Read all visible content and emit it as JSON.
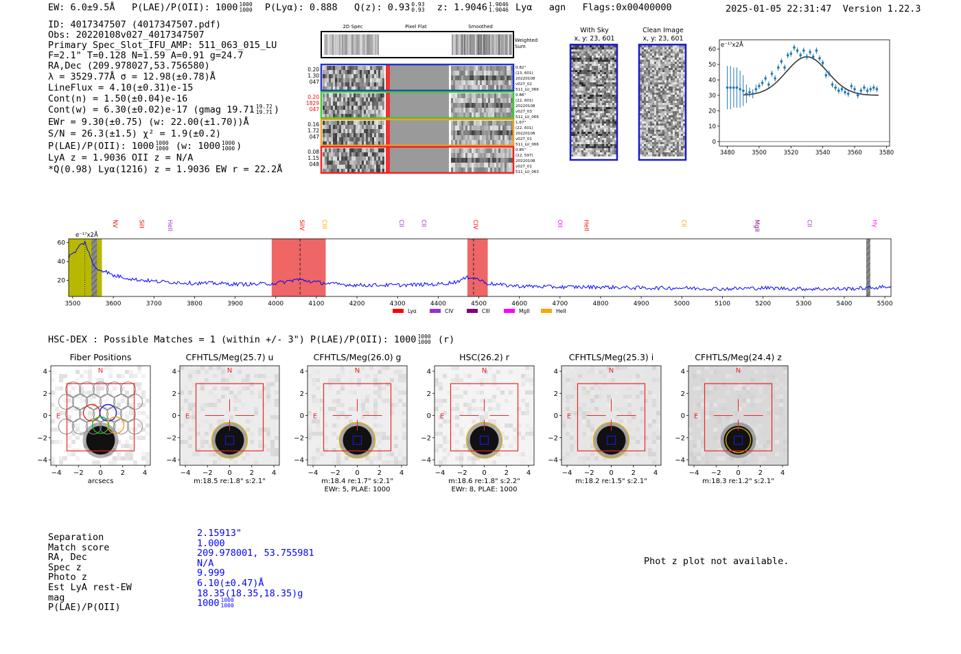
{
  "header": {
    "ew": "EW: 6.0±9.5Å",
    "plae_label": "P(LAE)/P(OII): 1000",
    "plae_sup": "1000",
    "plae_sub": "1000",
    "plya": "P(Lyα): 0.888",
    "qz_label": "Q(z): 0.93",
    "qz_sup": "0.93",
    "qz_sub": "0.93",
    "z_label": "z: 1.9046",
    "z_sup": "1.9046",
    "z_sub": "1.9046",
    "z_line": "Lyα",
    "agn": "agn",
    "flags": "Flags:0x00400000",
    "timestamp": "2025-01-05 22:31:47",
    "version": "Version 1.22.3"
  },
  "info": {
    "id": "ID: 4017347507 (4017347507.pdf)",
    "obs": "Obs: 20220108v027_4017347507",
    "primary": "Primary Spec_Slot_IFU_AMP: 511_063_015_LU",
    "fiber": "F=2.1\"  T=0.128  N=1.59  A=0.91  g=24.7",
    "radec": "RA,Dec (209.978027,53.756580)",
    "lambda": "λ = 3529.77Å  σ = 12.98(±0.78)Å",
    "lineflux": "LineFlux = 4.10(±0.31)e-15",
    "contn": "Cont(n) = 1.50(±0.04)e-16",
    "contw": "Cont(w) = 6.30(±0.02)e-17 (gmag 19.71",
    "contw_sup": "19.72",
    "contw_sub": "19.71",
    "contw_end": ")",
    "ewr": "EWr = 9.30(±0.75) (w: 22.00(±1.70))Å",
    "sn": "S/N = 26.3(±1.5)  χ² = 1.9(±0.2)",
    "plae": "P(LAE)/P(OII): 1000",
    "plae_sup": "1000",
    "plae_sub": "1000",
    "plae_w": "(w: 1000",
    "plae_w_sup": "1000",
    "plae_w_sub": "1000",
    "plae_w_end": ")",
    "lya_z": "LyA z = 1.9036  OII z = N/A",
    "q_line": "*Q(0.98) Lyα(1216) z = 1.9036  EW r = 22.2Å"
  },
  "spec2d": {
    "col_headers": [
      "2D Spec",
      "Pixel Flat",
      "Smoothed"
    ],
    "weighted_sum": [
      "Weighted",
      "Sum"
    ],
    "rows": [
      {
        "left": [
          "0.20",
          "1.30",
          "047"
        ],
        "left_color": "#000000",
        "right": [
          "0.82\"",
          "(23, 601)",
          "20220108",
          "v027_02",
          "511_LU_066"
        ],
        "border": "#2233cc"
      },
      {
        "left": [
          "0.20",
          "1829",
          "047"
        ],
        "left_color": "#ff0000",
        "right": [
          "0.86\"",
          "(22, 601)",
          "20220108",
          "v027_03",
          "511_LU_066"
        ],
        "border": "#33cc33"
      },
      {
        "left": [
          "0.16",
          "1.72",
          "047"
        ],
        "left_color": "#000000",
        "right": [
          "1.67\"",
          "(22, 601)",
          "20220108",
          "v027_01",
          "511_LU_066"
        ],
        "border": "#f0a020"
      },
      {
        "left": [
          "0.08",
          "1.15",
          "048"
        ],
        "left_color": "#000000",
        "right": [
          "0.85\"",
          "(22, 597)",
          "20220108",
          "v027_01",
          "511_LU_063"
        ],
        "border": "#ee2222"
      }
    ]
  },
  "cutouts_top": [
    {
      "title": "With Sky",
      "sub": "x, y: 23, 601"
    },
    {
      "title": "Clean Image",
      "sub": "x, y: 23, 601"
    }
  ],
  "colors": {
    "fit_points": "#1f77b4",
    "model": "#333333",
    "spectrum": "#0000ff",
    "bar_red": "#ee6666",
    "bar_yellow": "#b8b800",
    "bar_gray": "#888888",
    "match_blue": "#0000ff"
  },
  "chart_data": [
    {
      "type": "scatter",
      "name": "line-fit",
      "unit_label": "e⁻¹⁷x2Å",
      "xlim": [
        3475,
        3582
      ],
      "ylim": [
        -3,
        66
      ],
      "xticks": [
        3480,
        3500,
        3520,
        3540,
        3560,
        3580
      ],
      "yticks": [
        0,
        10,
        20,
        30,
        40,
        50,
        60
      ],
      "hline": 0,
      "points": [
        {
          "x": 3480,
          "y": 35,
          "err": 14
        },
        {
          "x": 3482,
          "y": 35,
          "err": 14
        },
        {
          "x": 3484,
          "y": 35,
          "err": 13
        },
        {
          "x": 3486,
          "y": 35,
          "err": 13
        },
        {
          "x": 3488,
          "y": 34,
          "err": 12
        },
        {
          "x": 3490,
          "y": 33,
          "err": 10
        },
        {
          "x": 3492,
          "y": 31,
          "err": 6
        },
        {
          "x": 3494,
          "y": 32,
          "err": 3
        },
        {
          "x": 3496,
          "y": 31,
          "err": 3
        },
        {
          "x": 3498,
          "y": 34,
          "err": 3
        },
        {
          "x": 3500,
          "y": 36,
          "err": 2
        },
        {
          "x": 3502,
          "y": 38,
          "err": 2
        },
        {
          "x": 3504,
          "y": 41,
          "err": 2
        },
        {
          "x": 3506,
          "y": 37,
          "err": 2
        },
        {
          "x": 3508,
          "y": 44,
          "err": 2
        },
        {
          "x": 3510,
          "y": 41,
          "err": 2
        },
        {
          "x": 3512,
          "y": 48,
          "err": 2
        },
        {
          "x": 3514,
          "y": 52,
          "err": 2
        },
        {
          "x": 3516,
          "y": 48,
          "err": 2
        },
        {
          "x": 3518,
          "y": 56,
          "err": 2
        },
        {
          "x": 3520,
          "y": 57,
          "err": 2
        },
        {
          "x": 3522,
          "y": 61,
          "err": 2
        },
        {
          "x": 3524,
          "y": 59,
          "err": 2
        },
        {
          "x": 3526,
          "y": 56,
          "err": 2
        },
        {
          "x": 3528,
          "y": 59,
          "err": 2
        },
        {
          "x": 3530,
          "y": 55,
          "err": 2
        },
        {
          "x": 3532,
          "y": 58,
          "err": 2
        },
        {
          "x": 3534,
          "y": 55,
          "err": 2
        },
        {
          "x": 3536,
          "y": 59,
          "err": 2
        },
        {
          "x": 3538,
          "y": 54,
          "err": 2
        },
        {
          "x": 3540,
          "y": 51,
          "err": 2
        },
        {
          "x": 3542,
          "y": 43,
          "err": 2
        },
        {
          "x": 3544,
          "y": 44,
          "err": 2
        },
        {
          "x": 3546,
          "y": 37,
          "err": 2
        },
        {
          "x": 3548,
          "y": 35,
          "err": 2
        },
        {
          "x": 3550,
          "y": 33,
          "err": 2
        },
        {
          "x": 3552,
          "y": 34,
          "err": 2
        },
        {
          "x": 3554,
          "y": 32,
          "err": 2
        },
        {
          "x": 3556,
          "y": 31,
          "err": 2
        },
        {
          "x": 3558,
          "y": 36,
          "err": 2
        },
        {
          "x": 3560,
          "y": 34,
          "err": 2
        },
        {
          "x": 3562,
          "y": 30,
          "err": 2
        },
        {
          "x": 3564,
          "y": 33,
          "err": 2
        },
        {
          "x": 3566,
          "y": 35,
          "err": 2
        },
        {
          "x": 3568,
          "y": 33,
          "err": 2
        },
        {
          "x": 3570,
          "y": 34,
          "err": 2
        },
        {
          "x": 3572,
          "y": 35,
          "err": 2
        },
        {
          "x": 3574,
          "y": 34,
          "err": 2
        }
      ],
      "model": {
        "center": 3530,
        "sigma": 13,
        "amplitude": 25,
        "baseline": 30,
        "xrange": [
          3490,
          3575
        ]
      }
    },
    {
      "type": "line",
      "name": "full-spectrum",
      "unit_label": "e⁻¹⁷x2Å",
      "xlim": [
        3490,
        5515
      ],
      "ylim": [
        3,
        64
      ],
      "xticks": [
        3500,
        3600,
        3700,
        3800,
        3900,
        4000,
        4100,
        4200,
        4300,
        4400,
        4500,
        4600,
        4700,
        4800,
        4900,
        5000,
        5100,
        5200,
        5300,
        5400,
        5500
      ],
      "yticks": [
        20,
        40,
        60
      ],
      "x": [
        3490,
        3500,
        3510,
        3520,
        3530,
        3540,
        3550,
        3560,
        3580,
        3600,
        3620,
        3650,
        3680,
        3700,
        3750,
        3800,
        3850,
        3900,
        3950,
        4000,
        4030,
        4050,
        4070,
        4100,
        4150,
        4200,
        4300,
        4400,
        4440,
        4460,
        4480,
        4500,
        4520,
        4560,
        4600,
        4700,
        4800,
        4900,
        5000,
        5100,
        5200,
        5300,
        5400,
        5460,
        5500,
        5515
      ],
      "y": [
        45,
        48,
        52,
        58,
        60,
        50,
        36,
        32,
        30,
        25,
        24,
        21,
        20,
        19,
        18,
        17,
        17,
        16,
        16,
        17,
        19,
        21,
        20,
        18,
        16,
        15,
        15,
        16,
        18,
        21,
        24,
        21,
        17,
        15,
        14,
        13,
        13,
        12,
        12,
        11,
        12,
        11,
        11,
        12,
        13,
        14
      ],
      "bands": [
        {
          "x0": 3490,
          "x1": 3572,
          "color": "#b8b800"
        },
        {
          "x0": 3546,
          "x1": 3560,
          "color": "#888888",
          "hatch": true
        },
        {
          "x0": 3990,
          "x1": 4123,
          "color": "#ee6666"
        },
        {
          "x0": 4472,
          "x1": 4522,
          "color": "#ee6666"
        },
        {
          "x0": 5454,
          "x1": 5464,
          "color": "#888888",
          "hatch": true
        }
      ],
      "dashed_lines": [
        4060,
        4487
      ],
      "dotted_lines": [
        3530
      ],
      "line_labels": [
        {
          "label": "NV",
          "x": 3600,
          "color": "#ff0000"
        },
        {
          "label": "SiII",
          "x": 3665,
          "color": "#ff0000"
        },
        {
          "label": "HeII",
          "x": 3735,
          "color": "#9932cc"
        },
        {
          "label": "SiIV",
          "x": 4060,
          "color": "#ff0000"
        },
        {
          "label": "CIII",
          "x": 4115,
          "color": "#ffa500"
        },
        {
          "label": "CII",
          "x": 4305,
          "color": "#9932cc"
        },
        {
          "label": "CII",
          "x": 4360,
          "color": "#9932cc"
        },
        {
          "label": "CIV",
          "x": 4487,
          "color": "#ff0000"
        },
        {
          "label": "OII",
          "x": 4695,
          "color": "#ff00ff"
        },
        {
          "label": "HeII",
          "x": 4760,
          "color": "#ff0000"
        },
        {
          "label": "CII",
          "x": 5000,
          "color": "#ffa500"
        },
        {
          "label": "MgII",
          "x": 5180,
          "color": "#800080"
        },
        {
          "label": "CII",
          "x": 5310,
          "color": "#9932cc"
        },
        {
          "label": "Hγ",
          "x": 5470,
          "color": "#ff00ff"
        }
      ],
      "legend": [
        {
          "label": "Lyα",
          "color": "#ff0000"
        },
        {
          "label": "CIV",
          "color": "#9932cc"
        },
        {
          "label": "CIII",
          "color": "#800080"
        },
        {
          "label": "MgII",
          "color": "#ff00ff"
        },
        {
          "label": "HeII",
          "color": "#ffa500"
        }
      ]
    }
  ],
  "hsc": {
    "title": "HSC-DEX : Possible Matches = 1 (within +/- 3\")  P(LAE)/P(OII): 1000",
    "title_sup": "1000",
    "title_sub": "1000",
    "title_end": "(r)",
    "axis_ticks": [
      "4",
      "2",
      "0",
      "−2",
      "−4"
    ],
    "xaxis_ticks": [
      "−4",
      "−2",
      "0",
      "2",
      "4"
    ],
    "north": "N",
    "east": "E",
    "panels": [
      {
        "title": "Fiber Positions",
        "caption1": "arcsecs",
        "caption2": "",
        "bg": "#ffffff"
      },
      {
        "title": "CFHTLS/Meg(25.7) u",
        "caption1": "m:18.5  re:1.8\"  s:2.1\"",
        "caption2": "",
        "bg": "#ececec"
      },
      {
        "title": "CFHTLS/Meg(26.0) g",
        "caption1": "m:18.4  re:1.7\"  s:2.1\"",
        "caption2": "EWr: 5, PLAE: 1000",
        "bg": "#eeeeee"
      },
      {
        "title": "HSC(26.2) r",
        "caption1": "m:18.6  re:1.8\"  s:2.2\"",
        "caption2": "EWr: 8, PLAE: 1000",
        "bg": "#f4f4f4"
      },
      {
        "title": "CFHTLS/Meg(25.3) i",
        "caption1": "m:18.2  re:1.5\"  s:2.1\"",
        "caption2": "",
        "bg": "#e6e6e6"
      },
      {
        "title": "CFHTLS/Meg(24.4) z",
        "caption1": "m:18.3  re:1.2\"  s:2.1\"",
        "caption2": "",
        "bg": "#d8d8d8"
      }
    ]
  },
  "match": {
    "labels": [
      "Separation",
      "Match score",
      "RA, Dec",
      "Spec z",
      "Photo z",
      "Est LyA rest-EW",
      "mag",
      "P(LAE)/P(OII)"
    ],
    "values": [
      "2.15913\"",
      "1.000",
      "209.978001, 53.755981",
      "N/A",
      "9.999",
      "6.10(±0.47)Å",
      "18.35(18.35,18.35)g",
      "1000"
    ],
    "plae_sup": "1000",
    "plae_sub": "1000",
    "photz_note": "Phot z plot not available."
  }
}
